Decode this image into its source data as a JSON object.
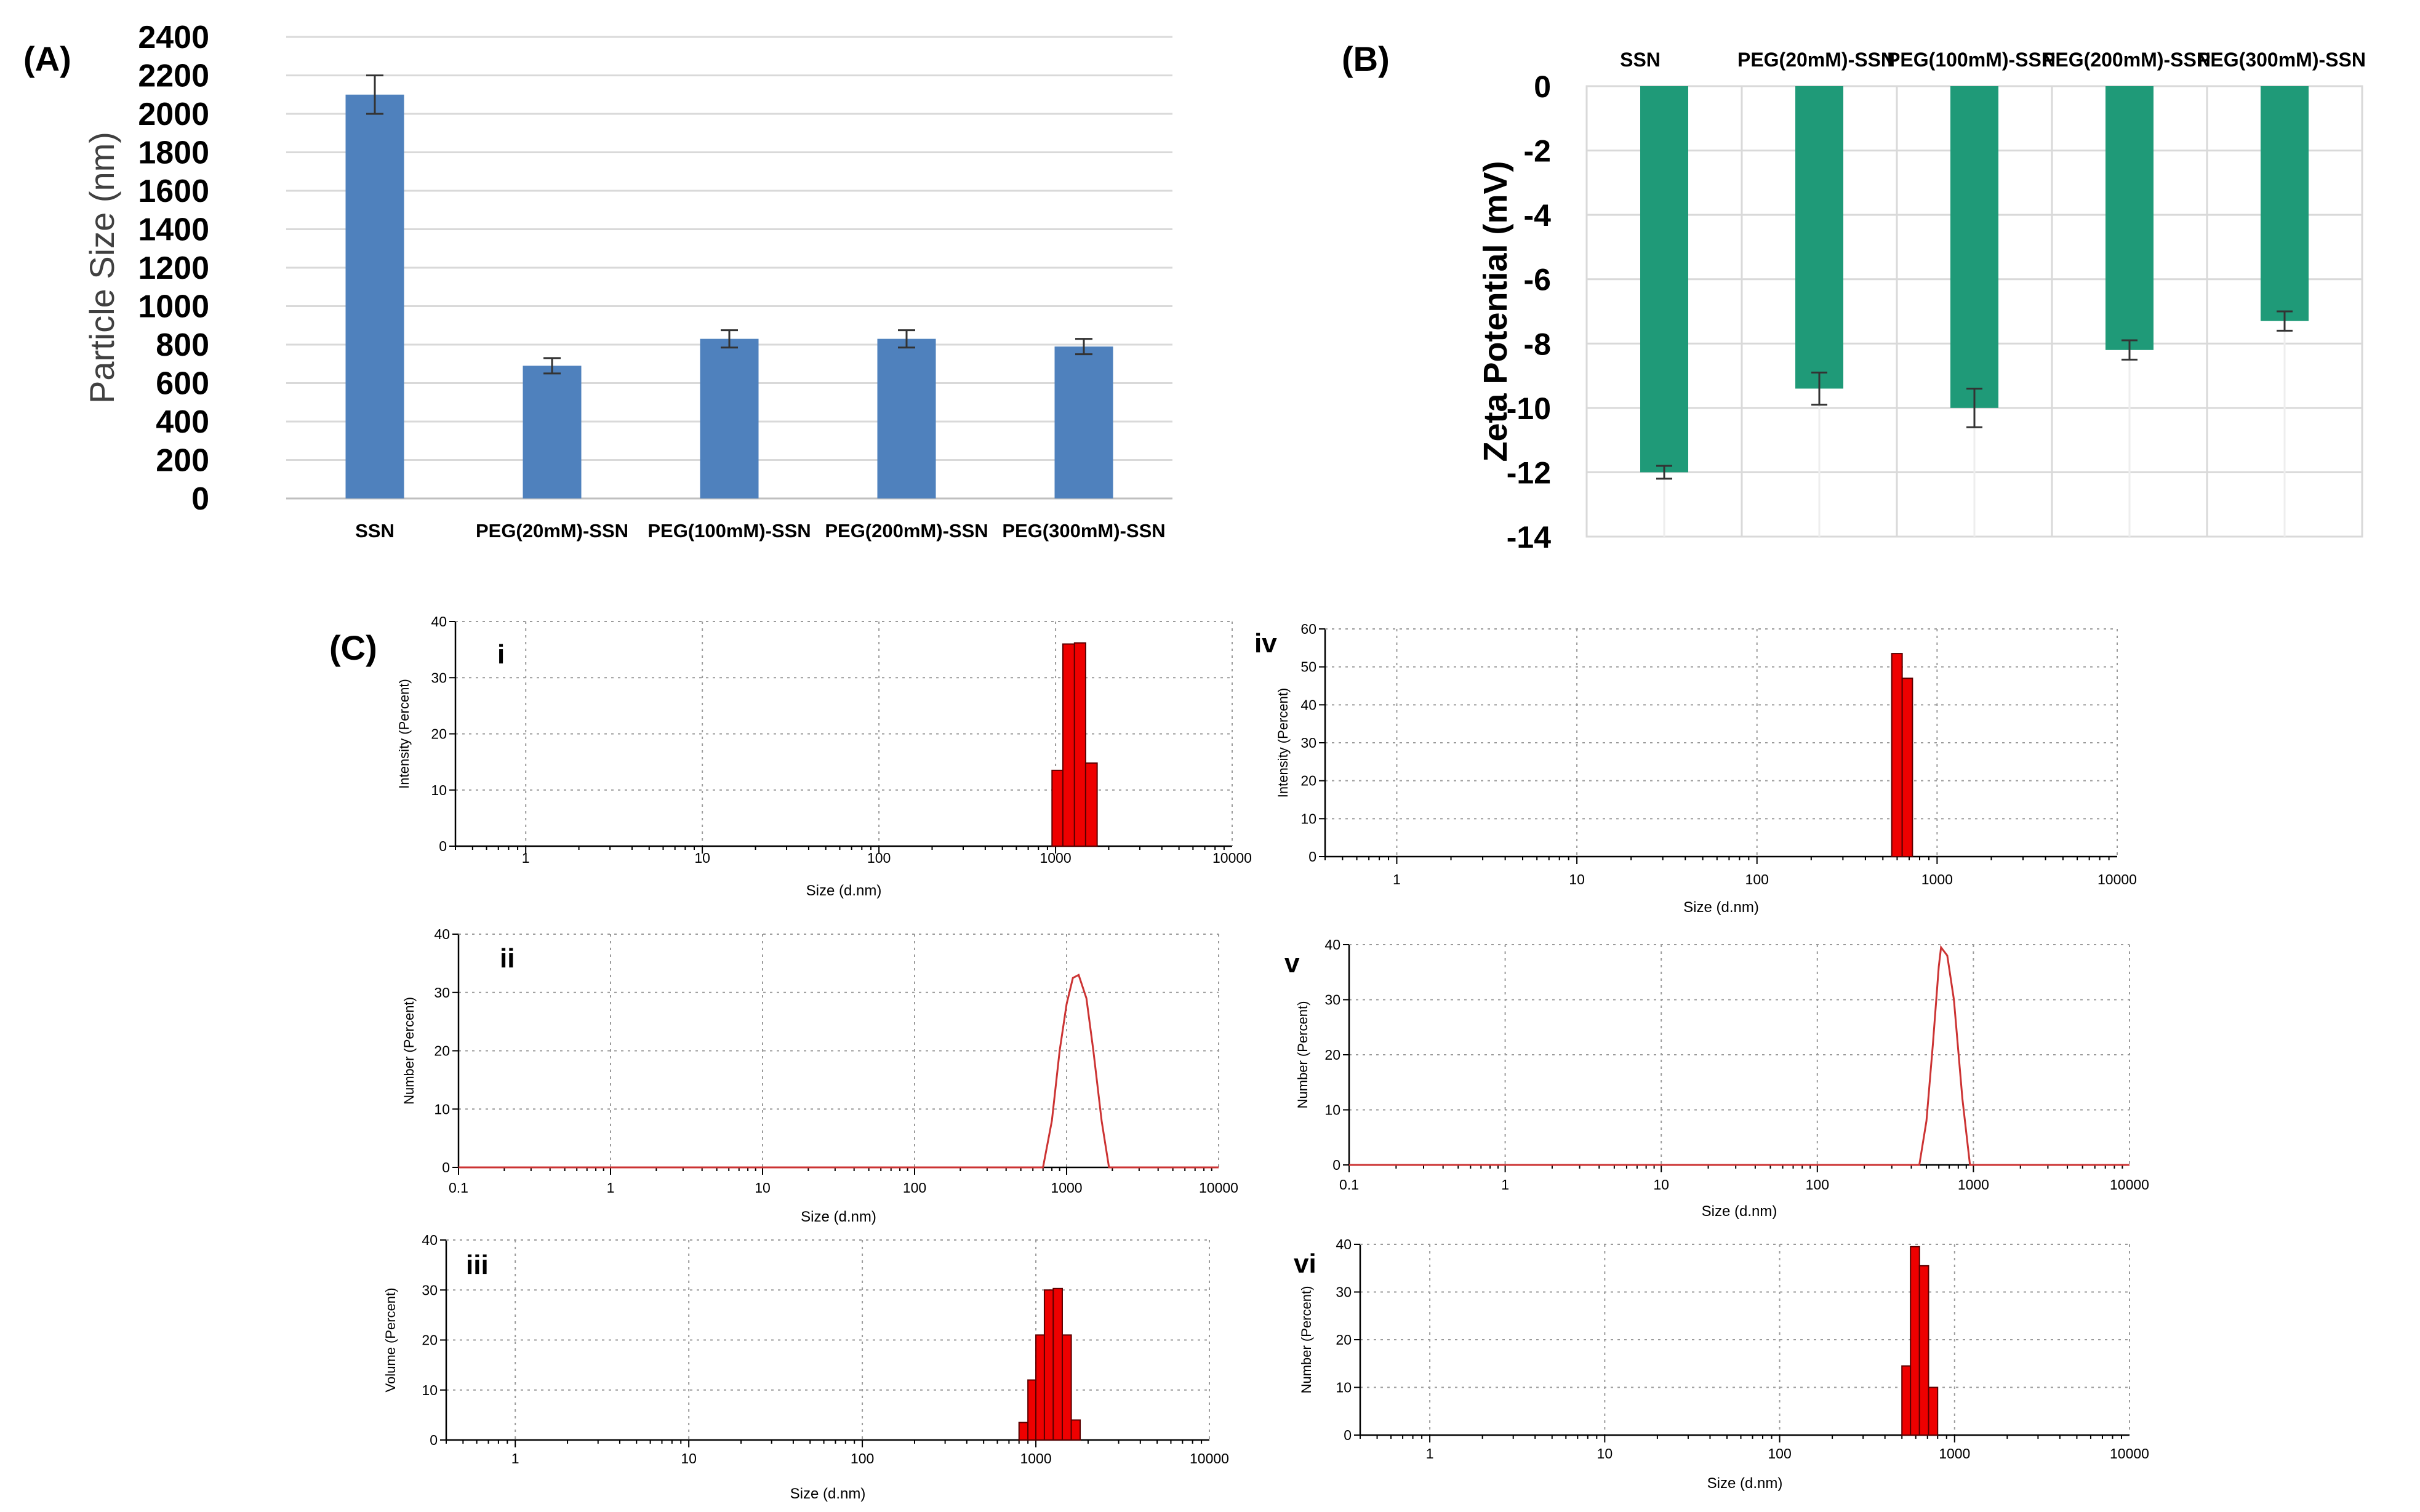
{
  "colors": {
    "bar_a": "#4f81bd",
    "bar_b": "#1f9a78",
    "grid": "#d9d9d9",
    "dls_red": "#ee0000",
    "dls_line": "#cc3333"
  },
  "chart_data": [
    {
      "id": "A",
      "panel_label": "(A)",
      "type": "bar",
      "ylabel": "Particle Size (nm)",
      "xlabel": "",
      "categories": [
        "SSN",
        "PEG(20mM)-SSN",
        "PEG(100mM)-SSN",
        "PEG(200mM)-SSN",
        "PEG(300mM)-SSN"
      ],
      "values": [
        2100,
        690,
        830,
        830,
        790
      ],
      "errors": [
        100,
        40,
        45,
        45,
        40
      ],
      "ylim": [
        0,
        2400
      ],
      "yticks": [
        0,
        200,
        400,
        600,
        800,
        1000,
        1200,
        1400,
        1600,
        1800,
        2000,
        2200,
        2400
      ],
      "grid": true
    },
    {
      "id": "B",
      "panel_label": "(B)",
      "type": "bar",
      "ylabel": "Zeta Potential (mV)",
      "xlabel": "",
      "categories": [
        "SSN",
        "PEG(20mM)-SSN",
        "PEG(100mM)-SSN",
        "PEG(200mM)-SSN",
        "PEG(300mM)-SSN"
      ],
      "values": [
        -12.0,
        -9.4,
        -10.0,
        -8.2,
        -7.3
      ],
      "errors": [
        0.2,
        0.5,
        0.6,
        0.3,
        0.3
      ],
      "ylim": [
        -14,
        0
      ],
      "yticks": [
        0,
        -2,
        -4,
        -6,
        -8,
        -10,
        -12,
        -14
      ],
      "category_position": "top",
      "grid": true
    },
    {
      "id": "C",
      "panel_label": "(C)",
      "subplots": [
        {
          "label": "i",
          "type": "bar",
          "ylabel": "Intensity (Percent)",
          "xlabel": "Size (d.nm)",
          "x_scale": "log",
          "xlim": [
            0.4,
            10000
          ],
          "xticks": [
            "1",
            "10",
            "100",
            "1000",
            "10000"
          ],
          "ylim": [
            0,
            40
          ],
          "yticks": [
            0,
            10,
            20,
            30,
            40
          ],
          "bins": [
            [
              955,
              1100,
              13.5
            ],
            [
              1100,
              1280,
              36
            ],
            [
              1280,
              1480,
              36.2
            ],
            [
              1480,
              1720,
              14.8
            ]
          ]
        },
        {
          "label": "ii",
          "type": "line",
          "ylabel": "Number (Percent)",
          "xlabel": "Size (d.nm)",
          "x_scale": "log",
          "xlim": [
            0.1,
            10000
          ],
          "xticks": [
            "0.1",
            "1",
            "10",
            "100",
            "1000",
            "10000"
          ],
          "ylim": [
            0,
            40
          ],
          "yticks": [
            0,
            10,
            20,
            30,
            40
          ],
          "x": [
            0.1,
            700,
            800,
            900,
            1000,
            1100,
            1200,
            1350,
            1500,
            1700,
            1900,
            10000
          ],
          "y": [
            0,
            0,
            8,
            20,
            28,
            32.5,
            33,
            29,
            20,
            8,
            0,
            0
          ]
        },
        {
          "label": "iii",
          "type": "bar",
          "ylabel": "Volume (Percent)",
          "xlabel": "Size (d.nm)",
          "x_scale": "log",
          "xlim": [
            0.4,
            10000
          ],
          "xticks": [
            "1",
            "10",
            "100",
            "1000",
            "10000"
          ],
          "ylim": [
            0,
            40
          ],
          "yticks": [
            0,
            10,
            20,
            30,
            40
          ],
          "bins": [
            [
              800,
              900,
              3.5
            ],
            [
              900,
              1000,
              12
            ],
            [
              1000,
              1120,
              21
            ],
            [
              1120,
              1260,
              30
            ],
            [
              1260,
              1420,
              30.3
            ],
            [
              1420,
              1600,
              21
            ],
            [
              1600,
              1800,
              4
            ]
          ]
        },
        {
          "label": "iv",
          "type": "bar",
          "ylabel": "Intensity (Percent)",
          "xlabel": "Size (d.nm)",
          "x_scale": "log",
          "xlim": [
            0.4,
            10000
          ],
          "xticks": [
            "1",
            "10",
            "100",
            "1000",
            "10000"
          ],
          "ylim": [
            0,
            60
          ],
          "yticks": [
            0,
            10,
            20,
            30,
            40,
            50,
            60
          ],
          "bins": [
            [
              560,
              640,
              53.5
            ],
            [
              640,
              730,
              47
            ]
          ]
        },
        {
          "label": "v",
          "type": "line",
          "ylabel": "Number (Percent)",
          "xlabel": "Size (d.nm)",
          "x_scale": "log",
          "xlim": [
            0.1,
            10000
          ],
          "xticks": [
            "0.1",
            "1",
            "10",
            "100",
            "1000",
            "10000"
          ],
          "ylim": [
            0,
            40
          ],
          "yticks": [
            0,
            10,
            20,
            30,
            40
          ],
          "x": [
            0.1,
            450,
            500,
            550,
            600,
            620,
            680,
            750,
            850,
            950,
            10000
          ],
          "y": [
            0,
            0,
            8,
            22,
            36,
            39.5,
            38,
            30,
            12,
            0,
            0
          ]
        },
        {
          "label": "vi",
          "type": "bar",
          "ylabel": "Number (Percent)",
          "xlabel": "Size (d.nm)",
          "x_scale": "log",
          "xlim": [
            0.4,
            10000
          ],
          "xticks": [
            "1",
            "10",
            "100",
            "1000",
            "10000"
          ],
          "ylim": [
            0,
            40
          ],
          "yticks": [
            0,
            10,
            20,
            30,
            40
          ],
          "bins": [
            [
              500,
              560,
              14.5
            ],
            [
              560,
              630,
              39.5
            ],
            [
              630,
              710,
              35.5
            ],
            [
              710,
              800,
              10
            ]
          ]
        }
      ]
    }
  ]
}
